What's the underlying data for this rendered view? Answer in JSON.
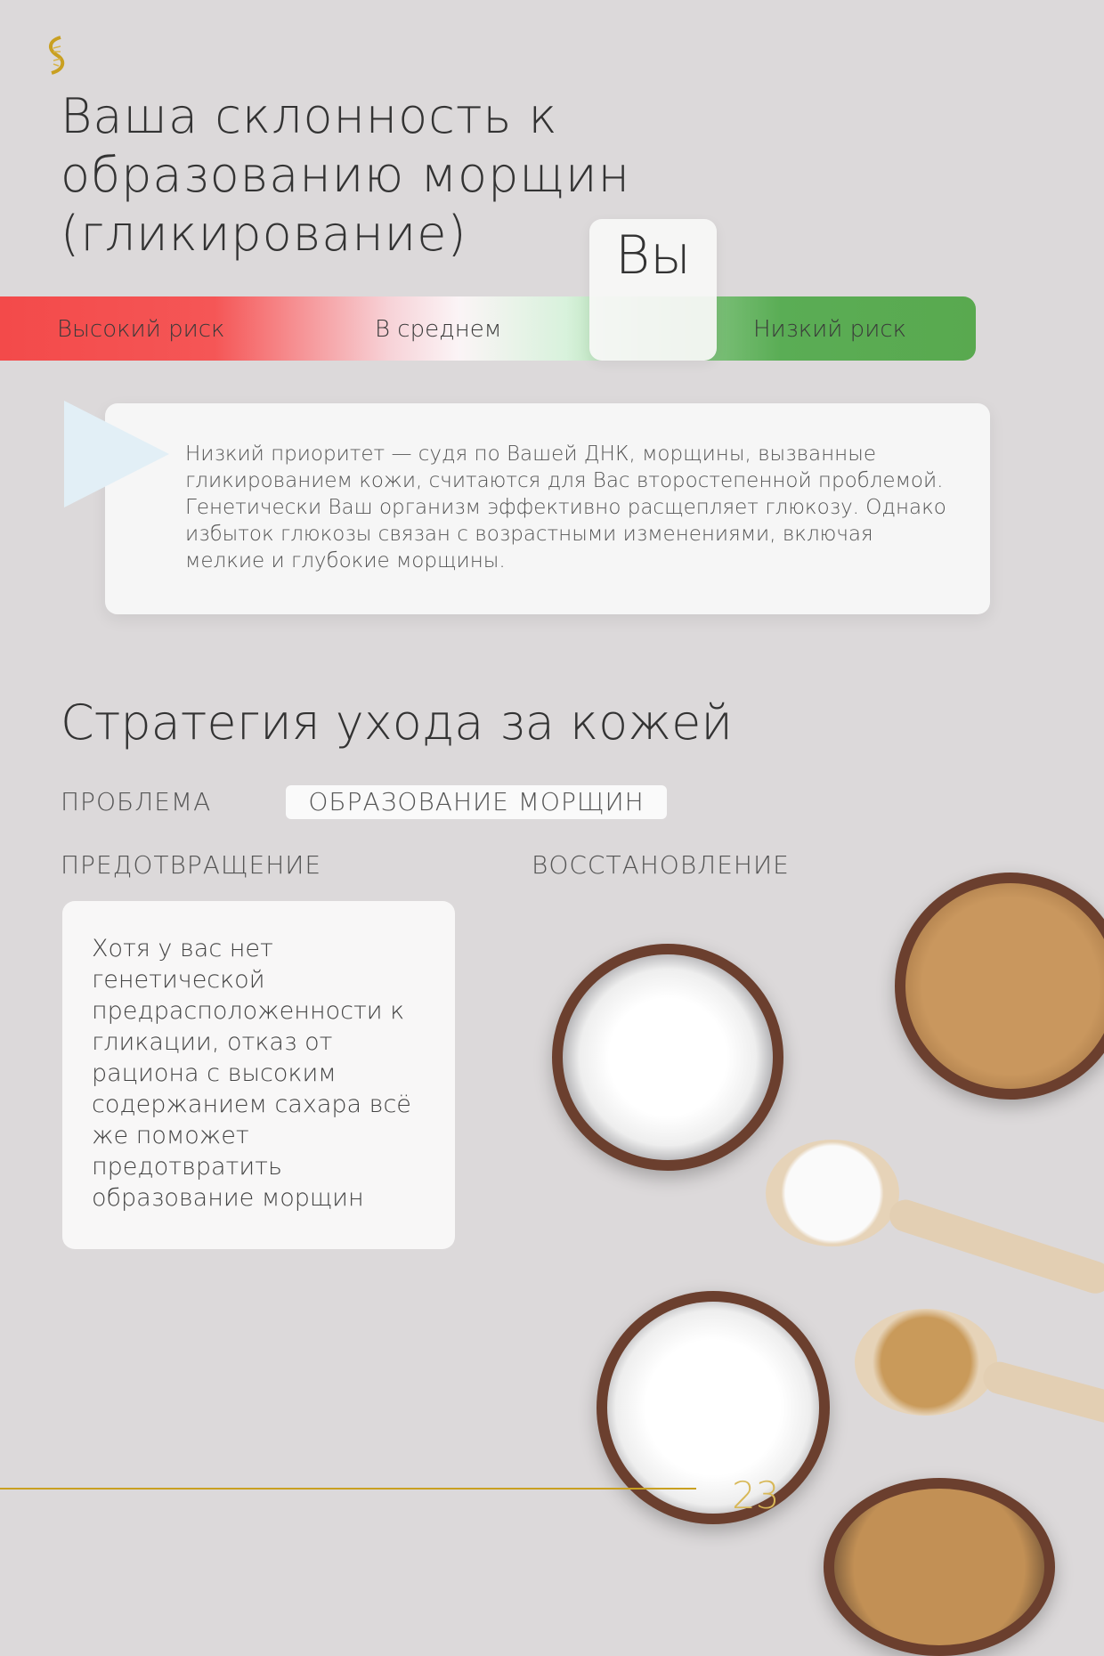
{
  "logo": {
    "icon": "dna-helix-icon",
    "color": "#c9a021"
  },
  "title": "Ваша склонность к образованию морщин (гликирование)",
  "risk_bar": {
    "labels": {
      "high": "Высокий риск",
      "average": "В среднем",
      "low": "Низкий риск"
    },
    "marker": "Вы",
    "position": "low",
    "colors": {
      "high": "#f34a4a",
      "low": "#59a94f"
    }
  },
  "callout": {
    "text": "Низкий приоритет — судя по Вашей ДНК, морщины, вызванные гликированием кожи, считаются для Вас второстепенной проблемой. Генетически Ваш организм эффективно расщепляет глюкозу. Однако избыток глюкозы связан с возрастными изменениями, включая мелкие и глубокие морщины."
  },
  "strategy": {
    "title": "Стратегия ухода за кожей",
    "problem_label": "ПРОБЛЕМА",
    "problem_value": "ОБРАЗОВАНИЕ МОРЩИН",
    "prevention_label": "ПРЕДОТВРАЩЕНИЕ",
    "recovery_label": "ВОССТАНОВЛЕНИЕ",
    "prevention_text": "Хотя у вас нет генетической предрасположенности к гликации, отказ от рациона с высоким содержанием сахара всё же поможет предотвратить образование морщин"
  },
  "footer": {
    "page_number": "23",
    "accent": "#c9a021"
  }
}
